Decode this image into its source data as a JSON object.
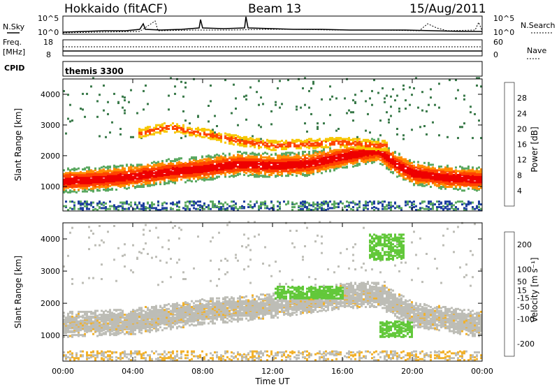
{
  "header": {
    "radar": "Hokkaido (fitACF)",
    "beam": "Beam 13",
    "date": "15/Aug/2011"
  },
  "noise_panel": {
    "left_label": "N.Sky",
    "right_label": "N.Search",
    "ticks": [
      "10^5",
      "10^0"
    ]
  },
  "freq_panel": {
    "left_label_1": "Freq.",
    "left_label_2": "[MHz]",
    "left_ticks": [
      "18",
      "8"
    ],
    "right_label": "Nave",
    "right_ticks": [
      "60",
      "0"
    ]
  },
  "cpid": {
    "label": "CPID",
    "value": "themis 3300"
  },
  "x_axis": {
    "label": "Time UT",
    "ticks": [
      "00:00",
      "04:00",
      "08:00",
      "12:00",
      "16:00",
      "20:00",
      "00:00"
    ]
  },
  "colors": {
    "power": [
      "#0000ee",
      "#1f3f9f",
      "#3a7a4a",
      "#5aa860",
      "#f7c600",
      "#ff8c00",
      "#ff4500",
      "#ee0000"
    ],
    "velocity": [
      "#ee0000",
      "#ff5500",
      "#ff9900",
      "#f2b12a",
      "#bdbdb6",
      "#bdbdb6",
      "#62c83a",
      "#3e9a3a",
      "#2d7a80",
      "#22329a"
    ]
  },
  "chart_data": [
    {
      "type": "heatmap",
      "title": "Power",
      "ylabel": "Slant Range [km]",
      "xlabel": "",
      "ylim": [
        200,
        4500
      ],
      "yticks": [
        "1000",
        "2000",
        "3000",
        "4000"
      ],
      "xlim_hours": [
        0,
        24
      ],
      "colorbar": {
        "label": "Power [dB]",
        "ticks": [
          "4",
          "8",
          "12",
          "16",
          "20",
          "24",
          "28"
        ],
        "range": [
          0,
          32
        ]
      },
      "main_band_center_km": [
        [
          0,
          1150
        ],
        [
          2,
          1200
        ],
        [
          4,
          1300
        ],
        [
          6,
          1450
        ],
        [
          8,
          1550
        ],
        [
          10,
          1700
        ],
        [
          12,
          1650
        ],
        [
          14,
          1700
        ],
        [
          16,
          1950
        ],
        [
          17,
          2050
        ],
        [
          18,
          2150
        ],
        [
          19,
          1700
        ],
        [
          20,
          1400
        ],
        [
          22,
          1250
        ],
        [
          24,
          1200
        ]
      ],
      "upper_band_center_km": [
        [
          4.5,
          2700
        ],
        [
          6,
          2900
        ],
        [
          8,
          2700
        ],
        [
          10,
          2450
        ],
        [
          12,
          2300
        ],
        [
          14,
          2350
        ],
        [
          16,
          2400
        ],
        [
          18,
          2300
        ]
      ]
    },
    {
      "type": "heatmap",
      "title": "Velocity",
      "ylabel": "Slant Range [km]",
      "xlabel": "Time UT",
      "ylim": [
        200,
        4500
      ],
      "yticks": [
        "1000",
        "2000",
        "3000",
        "4000"
      ],
      "xlim_hours": [
        0,
        24
      ],
      "colorbar": {
        "label": "Velocity [m s⁻¹]",
        "ticks": [
          "200",
          "100",
          "50",
          "15",
          "-15",
          "-50",
          "-100",
          "-200"
        ],
        "range": [
          -250,
          250
        ]
      },
      "main_band_center_km": [
        [
          0,
          1300
        ],
        [
          4,
          1400
        ],
        [
          8,
          1700
        ],
        [
          12,
          1900
        ],
        [
          16,
          2200
        ],
        [
          18,
          2250
        ],
        [
          20,
          1600
        ],
        [
          24,
          1300
        ]
      ],
      "positive_patches": [
        [
          12,
          16,
          2100,
          2500
        ],
        [
          17.5,
          19.5,
          3300,
          4100
        ],
        [
          18,
          20,
          900,
          1400
        ]
      ]
    }
  ]
}
